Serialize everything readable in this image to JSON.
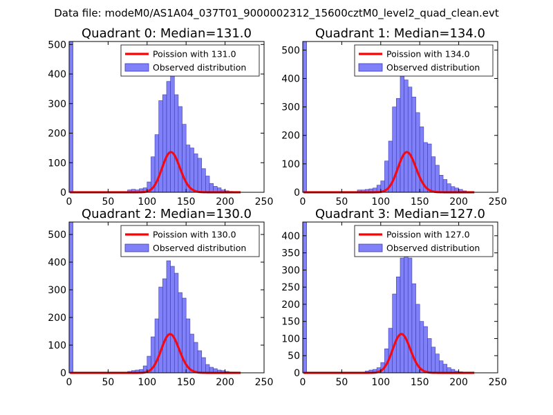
{
  "figure": {
    "suptitle": "Data file: modeM0/AS1A04_037T01_9000002312_15600cztM0_level2_quad_clean.evt"
  },
  "colors": {
    "bar_fill": "#8080f8",
    "bar_edge": "#3a3ab0",
    "curve": "#ff0000"
  },
  "chart_data": [
    {
      "type": "bar",
      "title": "Quadrant 0: Median=131.0",
      "xlim": [
        0,
        250
      ],
      "ylim": [
        0,
        510
      ],
      "xticks": [
        0,
        50,
        100,
        150,
        200,
        250
      ],
      "yticks": [
        0,
        100,
        200,
        300,
        400,
        500
      ],
      "legend": [
        "Poission with 131.0",
        "Observed distribution"
      ],
      "bin_width": 5,
      "poisson_mean": 131.0,
      "poisson_scale": 3900,
      "bins": [
        [
          0,
          510
        ],
        [
          75,
          8
        ],
        [
          80,
          10
        ],
        [
          85,
          8
        ],
        [
          90,
          12
        ],
        [
          95,
          15
        ],
        [
          100,
          35
        ],
        [
          105,
          120
        ],
        [
          110,
          195
        ],
        [
          115,
          310
        ],
        [
          120,
          330
        ],
        [
          125,
          375
        ],
        [
          130,
          400
        ],
        [
          135,
          330
        ],
        [
          140,
          290
        ],
        [
          145,
          230
        ],
        [
          150,
          160
        ],
        [
          155,
          150
        ],
        [
          160,
          130
        ],
        [
          165,
          115
        ],
        [
          170,
          80
        ],
        [
          175,
          55
        ],
        [
          180,
          30
        ],
        [
          185,
          20
        ],
        [
          190,
          15
        ],
        [
          195,
          8
        ],
        [
          200,
          5
        ],
        [
          205,
          3
        ]
      ]
    },
    {
      "type": "bar",
      "title": "Quadrant 1: Median=134.0",
      "xlim": [
        0,
        250
      ],
      "ylim": [
        0,
        530
      ],
      "xticks": [
        0,
        50,
        100,
        150,
        200,
        250
      ],
      "yticks": [
        0,
        100,
        200,
        300,
        400,
        500
      ],
      "legend": [
        "Poission with 134.0",
        "Observed distribution"
      ],
      "bin_width": 5,
      "poisson_mean": 134.0,
      "poisson_scale": 4100,
      "bins": [
        [
          0,
          530
        ],
        [
          70,
          8
        ],
        [
          75,
          8
        ],
        [
          80,
          10
        ],
        [
          85,
          12
        ],
        [
          90,
          15
        ],
        [
          95,
          25
        ],
        [
          100,
          40
        ],
        [
          105,
          110
        ],
        [
          110,
          180
        ],
        [
          115,
          300
        ],
        [
          120,
          330
        ],
        [
          125,
          420
        ],
        [
          130,
          395
        ],
        [
          135,
          370
        ],
        [
          140,
          335
        ],
        [
          145,
          280
        ],
        [
          150,
          230
        ],
        [
          155,
          175
        ],
        [
          160,
          170
        ],
        [
          165,
          125
        ],
        [
          170,
          95
        ],
        [
          175,
          60
        ],
        [
          180,
          45
        ],
        [
          185,
          30
        ],
        [
          190,
          20
        ],
        [
          195,
          15
        ],
        [
          200,
          10
        ],
        [
          205,
          5
        ]
      ]
    },
    {
      "type": "bar",
      "title": "Quadrant 2: Median=130.0",
      "xlim": [
        0,
        250
      ],
      "ylim": [
        0,
        545
      ],
      "xticks": [
        0,
        50,
        100,
        150,
        200,
        250
      ],
      "yticks": [
        0,
        100,
        200,
        300,
        400,
        500
      ],
      "legend": [
        "Poission with 130.0",
        "Observed distribution"
      ],
      "bin_width": 5,
      "poisson_mean": 130.0,
      "poisson_scale": 4000,
      "bins": [
        [
          0,
          545
        ],
        [
          75,
          5
        ],
        [
          80,
          8
        ],
        [
          85,
          10
        ],
        [
          90,
          12
        ],
        [
          95,
          25
        ],
        [
          100,
          60
        ],
        [
          105,
          130
        ],
        [
          110,
          195
        ],
        [
          115,
          310
        ],
        [
          120,
          340
        ],
        [
          125,
          405
        ],
        [
          130,
          385
        ],
        [
          135,
          360
        ],
        [
          140,
          290
        ],
        [
          145,
          270
        ],
        [
          150,
          195
        ],
        [
          155,
          140
        ],
        [
          160,
          110
        ],
        [
          165,
          80
        ],
        [
          170,
          55
        ],
        [
          175,
          30
        ],
        [
          180,
          20
        ],
        [
          185,
          15
        ],
        [
          190,
          10
        ],
        [
          195,
          8
        ],
        [
          200,
          5
        ],
        [
          205,
          3
        ],
        [
          210,
          2
        ]
      ]
    },
    {
      "type": "bar",
      "title": "Quadrant 3: Median=127.0",
      "xlim": [
        0,
        250
      ],
      "ylim": [
        0,
        440
      ],
      "xticks": [
        0,
        50,
        100,
        150,
        200,
        250
      ],
      "yticks": [
        0,
        50,
        100,
        150,
        200,
        250,
        300,
        350,
        400
      ],
      "legend": [
        "Poission with 127.0",
        "Observed distribution"
      ],
      "bin_width": 5,
      "poisson_mean": 127.0,
      "poisson_scale": 3200,
      "bins": [
        [
          0,
          440
        ],
        [
          80,
          5
        ],
        [
          85,
          8
        ],
        [
          90,
          10
        ],
        [
          95,
          15
        ],
        [
          100,
          30
        ],
        [
          105,
          70
        ],
        [
          110,
          130
        ],
        [
          115,
          230
        ],
        [
          120,
          280
        ],
        [
          125,
          335
        ],
        [
          130,
          360
        ],
        [
          135,
          335
        ],
        [
          140,
          260
        ],
        [
          145,
          200
        ],
        [
          150,
          150
        ],
        [
          155,
          135
        ],
        [
          160,
          100
        ],
        [
          165,
          75
        ],
        [
          170,
          55
        ],
        [
          175,
          35
        ],
        [
          180,
          25
        ],
        [
          185,
          15
        ],
        [
          190,
          10
        ],
        [
          195,
          5
        ],
        [
          200,
          3
        ]
      ]
    }
  ]
}
